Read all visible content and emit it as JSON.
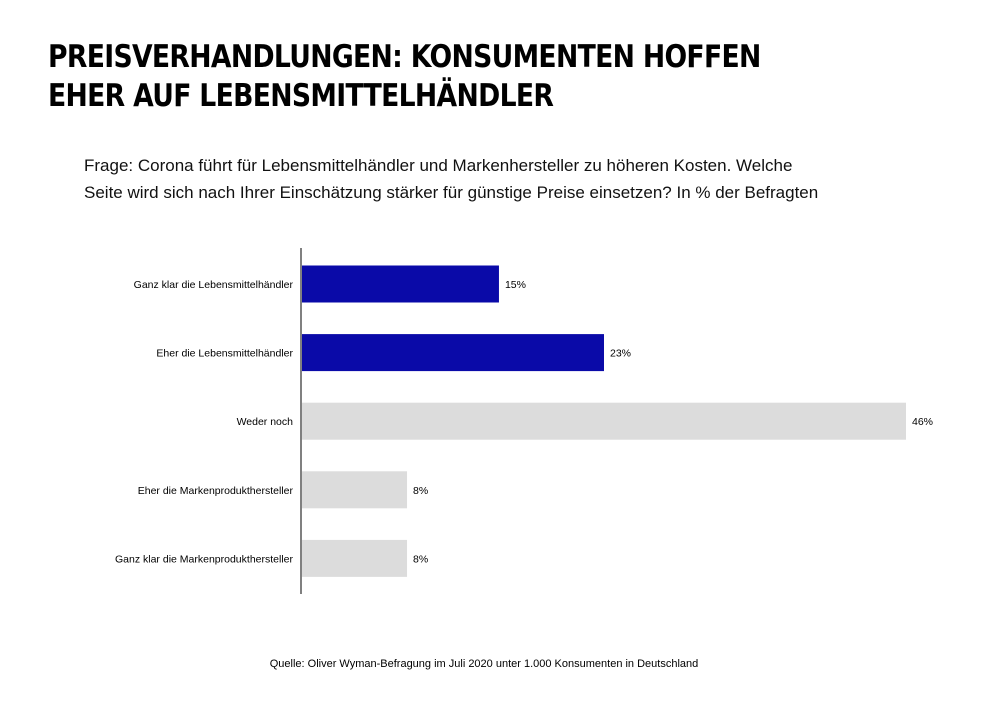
{
  "header": {
    "title": "PREISVERHANDLUNGEN: KONSUMENTEN HOFFEN EHER AUF LEBENSMITTELHÄNDLER",
    "question_line1": "Frage: Corona führt für Lebensmittelhändler  und Markenhersteller  zu höheren Kosten. Welche",
    "question_line2": "Seite wird sich nach Ihrer Einschätzung stärker für günstige Preise einsetzen?  In % der Befragten"
  },
  "chart_data": {
    "type": "bar",
    "orientation": "horizontal",
    "title": "",
    "xlabel": "",
    "ylabel": "",
    "unit": "%",
    "categories": [
      "Ganz klar die Lebensmittelhändler",
      "Eher die Lebensmittelhändler",
      "Weder noch",
      "Eher die Markenprodukthersteller",
      "Ganz klar die Markenprodukthersteller"
    ],
    "values": [
      15,
      23,
      46,
      8,
      8
    ],
    "value_labels": [
      "15%",
      "23%",
      "46%",
      "8%",
      "8%"
    ],
    "bar_colors": [
      "#0a0aa8",
      "#0a0aa8",
      "#dcdcdc",
      "#dcdcdc",
      "#dcdcdc"
    ],
    "xlim": [
      0,
      46
    ],
    "grid": false,
    "legend": "none"
  },
  "footer": {
    "source": "Quelle: Oliver Wyman-Befragung im Juli 2020 unter 1.000 Konsumenten in Deutschland"
  }
}
